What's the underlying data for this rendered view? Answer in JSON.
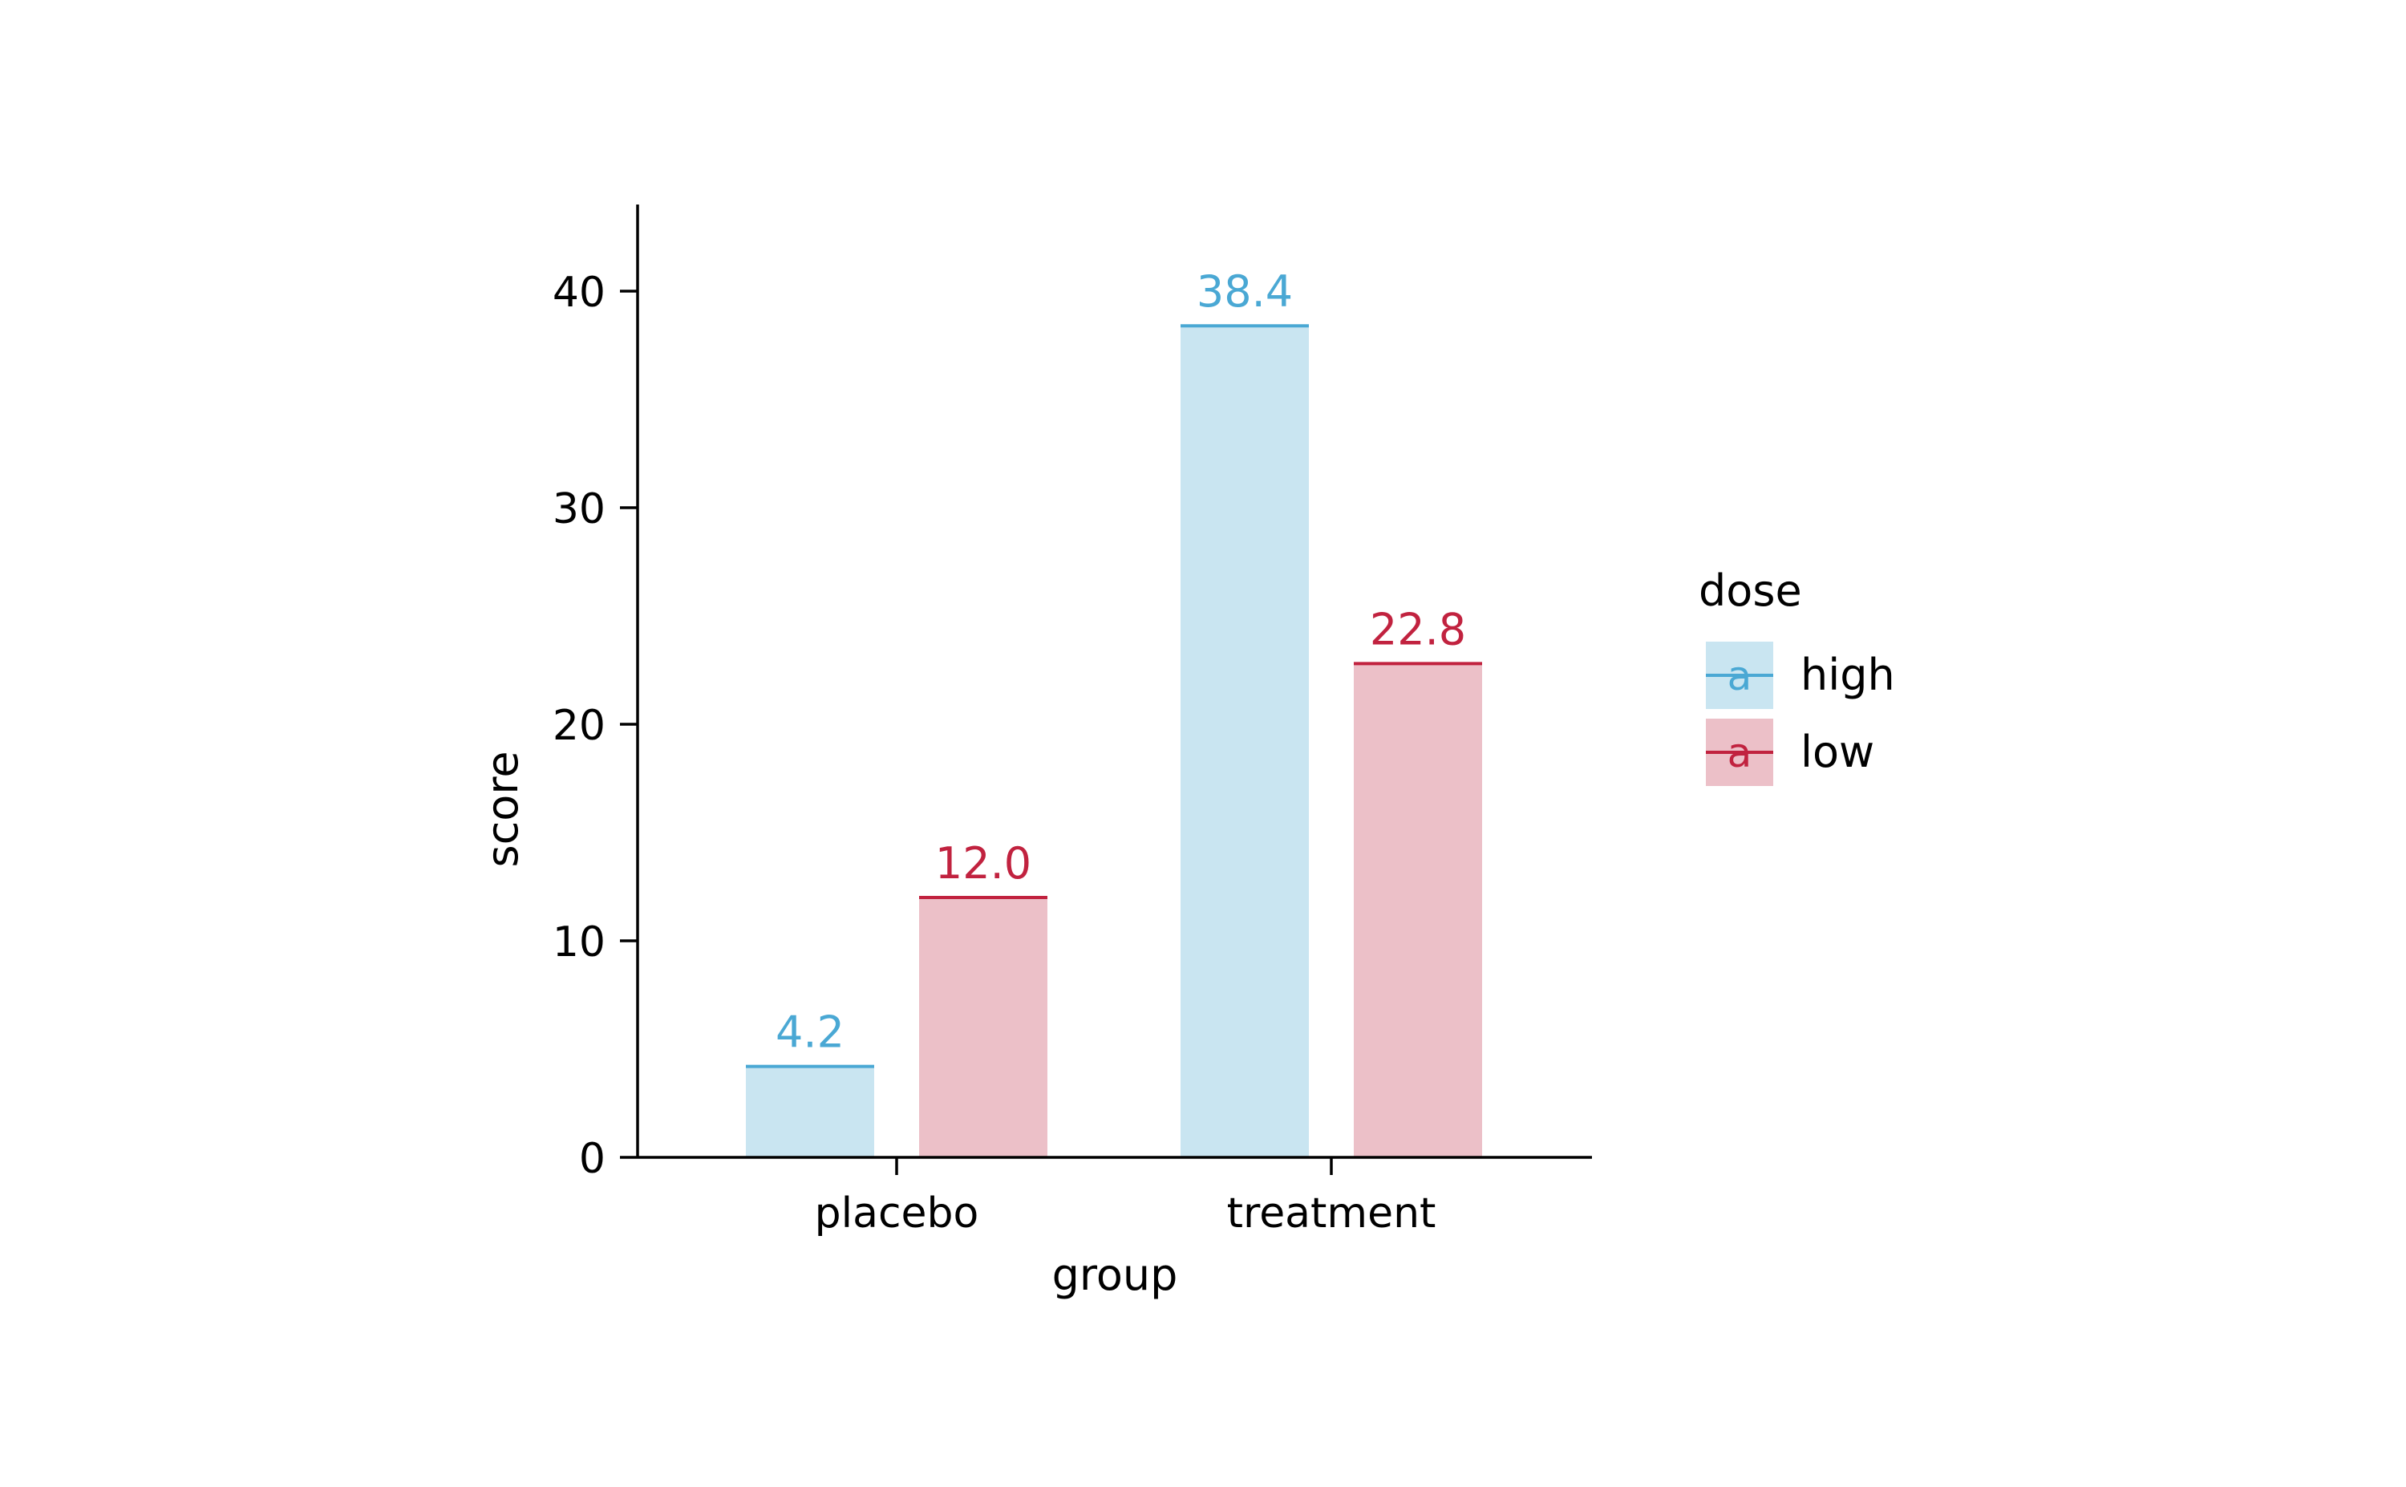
{
  "chart_data": {
    "type": "bar",
    "xlabel": "group",
    "ylabel": "score",
    "categories": [
      "placebo",
      "treatment"
    ],
    "series": [
      {
        "name": "high",
        "values": [
          4.2,
          38.4
        ],
        "labels": [
          "4.2",
          "38.4"
        ],
        "fill": "#c9e5f1",
        "line": "#4aa8d4"
      },
      {
        "name": "low",
        "values": [
          12.0,
          22.8
        ],
        "labels": [
          "12.0",
          "22.8"
        ],
        "fill": "#ecc0c8",
        "line": "#c1223f"
      }
    ],
    "ylim": [
      0,
      44
    ],
    "yticks": [
      0,
      10,
      20,
      30,
      40
    ],
    "ytick_labels": [
      "0",
      "10",
      "20",
      "30",
      "40"
    ],
    "grid": false,
    "legend": {
      "title": "dose",
      "placement": "right",
      "glyph": "a"
    }
  }
}
